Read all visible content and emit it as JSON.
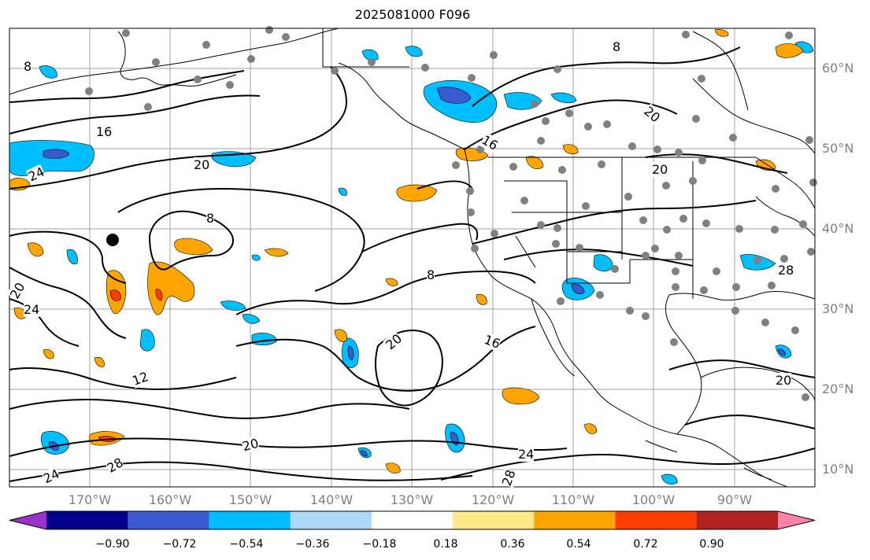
{
  "title": "2025081000 F096",
  "colors": {
    "land_line": "#000000",
    "contour": "#000000",
    "grid": "#a0a0a0",
    "station_dot": "#808080",
    "storm_marker": "#000000"
  },
  "lat_labels": [
    "60°N",
    "50°N",
    "40°N",
    "30°N",
    "20°N",
    "10°N"
  ],
  "lon_labels": [
    "170°W",
    "160°W",
    "150°W",
    "140°W",
    "130°W",
    "120°W",
    "110°W",
    "100°W",
    "90°W"
  ],
  "contour_labels": [
    "8",
    "16",
    "24",
    "20",
    "8",
    "16",
    "20",
    "20",
    "16",
    "20",
    "8",
    "20",
    "24",
    "12",
    "20",
    "24",
    "28",
    "24",
    "28",
    "28",
    "20",
    "8"
  ],
  "colorbar": {
    "ticks": [
      "−0.90",
      "−0.72",
      "−0.54",
      "−0.36",
      "−0.18",
      "0.18",
      "0.36",
      "0.54",
      "0.72",
      "0.90"
    ],
    "colors": [
      "#9932cc",
      "#00008b",
      "#3a5bd0",
      "#00bfff",
      "#add8f6",
      "#ffffff",
      "#ffe98a",
      "#ffa500",
      "#ff3d00",
      "#b22222",
      "#ff82ab"
    ]
  }
}
